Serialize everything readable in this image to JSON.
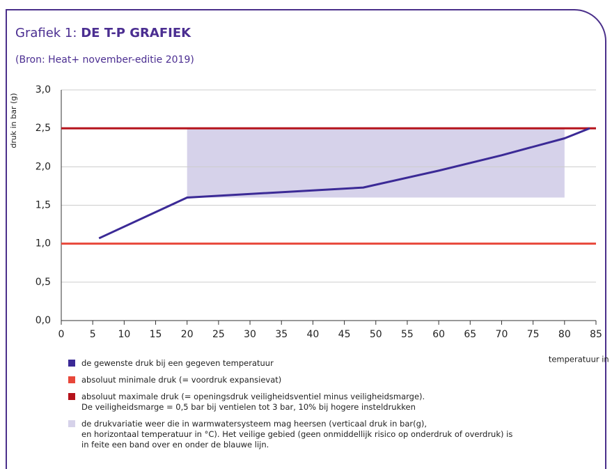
{
  "chart_data": {
    "type": "line",
    "title_prefix": "Grafiek 1:",
    "title": "DE T-P GRAFIEK",
    "subtitle": "(Bron: Heat+ november-editie 2019)",
    "y_label": "druk in bar (g)",
    "x_label": "temperatuur in °C",
    "xlim": [
      0,
      85
    ],
    "xticks": [
      0,
      5,
      10,
      15,
      20,
      25,
      30,
      35,
      40,
      45,
      50,
      55,
      60,
      65,
      70,
      75,
      80,
      85
    ],
    "ylim": [
      0,
      3
    ],
    "yticks": [
      {
        "value": 0,
        "label": "0,0"
      },
      {
        "value": 0.5,
        "label": "0,5"
      },
      {
        "value": 1,
        "label": "1,0"
      },
      {
        "value": 1.5,
        "label": "1,5"
      },
      {
        "value": 2,
        "label": "2,0"
      },
      {
        "value": 2.5,
        "label": "2,5"
      },
      {
        "value": 3,
        "label": "3,0"
      }
    ],
    "grid": true,
    "series": [
      {
        "name": "de gewenste druk bij een gegeven temperatuur",
        "color": "#3b2a96",
        "x": [
          6,
          20,
          48,
          60,
          70,
          80,
          84
        ],
        "values": [
          1.07,
          1.6,
          1.73,
          1.95,
          2.15,
          2.37,
          2.5
        ]
      }
    ],
    "hlines": [
      {
        "name": "absoluut minimale druk (= voordruk expansievat)",
        "color": "#e8473a",
        "value": 1
      },
      {
        "name": "absoluut maximale druk (= openingsdruk veiligheidsventiel minus veiligheidsmarge).\nDe veiligheidsmarge = 0,5 bar bij ventielen tot 3 bar, 10% bij hogere insteldrukken",
        "color": "#b5121b",
        "value": 2.5
      }
    ],
    "band": {
      "name": "de drukvariatie weer die in warmwatersysteem mag heersen (verticaal druk in bar(g),\nen horizontaal temperatuur in °C). Het veilige gebied (geen onmiddellijk risico op onderdruk of overdruk) is\nin feite een band over en onder de blauwe lijn.",
      "color": "#d6d2ea",
      "xrange": [
        20,
        80
      ],
      "yrange": [
        1.6,
        2.5
      ]
    }
  }
}
